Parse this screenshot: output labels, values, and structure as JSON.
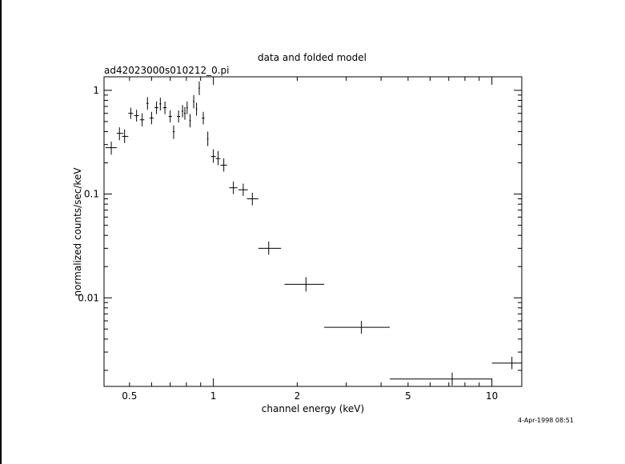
{
  "chart_data": {
    "type": "scatter",
    "title": "data and folded model",
    "subtitle": "ad42023000s010212_0.pi",
    "xlabel": "channel energy (keV)",
    "ylabel": "normalized counts/sec/keV",
    "timestamp": "4-Apr-1998 08:51",
    "x_scale": "log",
    "y_scale": "log",
    "xlim": [
      0.405,
      12.8
    ],
    "ylim": [
      0.0014,
      1.35
    ],
    "x_ticks": [
      {
        "value": 0.5,
        "label": "0.5"
      },
      {
        "value": 1,
        "label": "1"
      },
      {
        "value": 2,
        "label": "2"
      },
      {
        "value": 5,
        "label": "5"
      },
      {
        "value": 10,
        "label": "10"
      }
    ],
    "y_ticks": [
      {
        "value": 0.01,
        "label": "0.01"
      },
      {
        "value": 0.1,
        "label": "0.1"
      },
      {
        "value": 1,
        "label": "1"
      }
    ],
    "grid": false,
    "points": [
      {
        "x": 0.43,
        "xlo": 0.41,
        "xhi": 0.45,
        "y": 0.28,
        "ylo": 0.24,
        "yhi": 0.32
      },
      {
        "x": 0.46,
        "xlo": 0.45,
        "xhi": 0.475,
        "y": 0.385,
        "ylo": 0.33,
        "yhi": 0.44
      },
      {
        "x": 0.48,
        "xlo": 0.47,
        "xhi": 0.495,
        "y": 0.36,
        "ylo": 0.31,
        "yhi": 0.42
      },
      {
        "x": 0.505,
        "xlo": 0.495,
        "xhi": 0.515,
        "y": 0.6,
        "ylo": 0.53,
        "yhi": 0.68
      },
      {
        "x": 0.53,
        "xlo": 0.52,
        "xhi": 0.54,
        "y": 0.57,
        "ylo": 0.5,
        "yhi": 0.65
      },
      {
        "x": 0.555,
        "xlo": 0.545,
        "xhi": 0.565,
        "y": 0.52,
        "ylo": 0.45,
        "yhi": 0.6
      },
      {
        "x": 0.58,
        "xlo": 0.575,
        "xhi": 0.585,
        "y": 0.75,
        "ylo": 0.65,
        "yhi": 0.86
      },
      {
        "x": 0.6,
        "xlo": 0.59,
        "xhi": 0.61,
        "y": 0.54,
        "ylo": 0.47,
        "yhi": 0.62
      },
      {
        "x": 0.625,
        "xlo": 0.615,
        "xhi": 0.635,
        "y": 0.68,
        "ylo": 0.59,
        "yhi": 0.78
      },
      {
        "x": 0.645,
        "xlo": 0.64,
        "xhi": 0.65,
        "y": 0.74,
        "ylo": 0.64,
        "yhi": 0.85
      },
      {
        "x": 0.67,
        "xlo": 0.66,
        "xhi": 0.68,
        "y": 0.68,
        "ylo": 0.59,
        "yhi": 0.78
      },
      {
        "x": 0.7,
        "xlo": 0.69,
        "xhi": 0.71,
        "y": 0.56,
        "ylo": 0.49,
        "yhi": 0.64
      },
      {
        "x": 0.72,
        "xlo": 0.715,
        "xhi": 0.725,
        "y": 0.4,
        "ylo": 0.34,
        "yhi": 0.46
      },
      {
        "x": 0.75,
        "xlo": 0.74,
        "xhi": 0.76,
        "y": 0.56,
        "ylo": 0.49,
        "yhi": 0.64
      },
      {
        "x": 0.775,
        "xlo": 0.77,
        "xhi": 0.78,
        "y": 0.63,
        "ylo": 0.55,
        "yhi": 0.72
      },
      {
        "x": 0.79,
        "xlo": 0.785,
        "xhi": 0.795,
        "y": 0.6,
        "ylo": 0.52,
        "yhi": 0.69
      },
      {
        "x": 0.805,
        "xlo": 0.8,
        "xhi": 0.81,
        "y": 0.68,
        "ylo": 0.59,
        "yhi": 0.78
      },
      {
        "x": 0.825,
        "xlo": 0.82,
        "xhi": 0.83,
        "y": 0.51,
        "ylo": 0.44,
        "yhi": 0.59
      },
      {
        "x": 0.85,
        "xlo": 0.845,
        "xhi": 0.855,
        "y": 0.78,
        "ylo": 0.67,
        "yhi": 0.9
      },
      {
        "x": 0.87,
        "xlo": 0.865,
        "xhi": 0.875,
        "y": 0.66,
        "ylo": 0.57,
        "yhi": 0.76
      },
      {
        "x": 0.89,
        "xlo": 0.885,
        "xhi": 0.895,
        "y": 1.05,
        "ylo": 0.9,
        "yhi": 1.22
      },
      {
        "x": 0.92,
        "xlo": 0.91,
        "xhi": 0.93,
        "y": 0.54,
        "ylo": 0.47,
        "yhi": 0.62
      },
      {
        "x": 0.955,
        "xlo": 0.95,
        "xhi": 0.96,
        "y": 0.34,
        "ylo": 0.29,
        "yhi": 0.4
      },
      {
        "x": 1.0,
        "xlo": 0.98,
        "xhi": 1.02,
        "y": 0.23,
        "ylo": 0.2,
        "yhi": 0.27
      },
      {
        "x": 1.04,
        "xlo": 1.02,
        "xhi": 1.06,
        "y": 0.22,
        "ylo": 0.19,
        "yhi": 0.26
      },
      {
        "x": 1.09,
        "xlo": 1.06,
        "xhi": 1.12,
        "y": 0.19,
        "ylo": 0.165,
        "yhi": 0.22
      },
      {
        "x": 1.18,
        "xlo": 1.14,
        "xhi": 1.22,
        "y": 0.115,
        "ylo": 0.1,
        "yhi": 0.132
      },
      {
        "x": 1.28,
        "xlo": 1.23,
        "xhi": 1.33,
        "y": 0.11,
        "ylo": 0.096,
        "yhi": 0.126
      },
      {
        "x": 1.38,
        "xlo": 1.32,
        "xhi": 1.45,
        "y": 0.09,
        "ylo": 0.078,
        "yhi": 0.103
      },
      {
        "x": 1.58,
        "xlo": 1.45,
        "xhi": 1.75,
        "y": 0.03,
        "ylo": 0.026,
        "yhi": 0.035
      },
      {
        "x": 2.15,
        "xlo": 1.8,
        "xhi": 2.5,
        "y": 0.0135,
        "ylo": 0.0115,
        "yhi": 0.0158
      },
      {
        "x": 3.4,
        "xlo": 2.5,
        "xhi": 4.3,
        "y": 0.0052,
        "ylo": 0.0045,
        "yhi": 0.006
      },
      {
        "x": 7.2,
        "xlo": 4.3,
        "xhi": 10.0,
        "y": 0.00165,
        "ylo": 0.00143,
        "yhi": 0.0019
      },
      {
        "x": 11.8,
        "xlo": 10.0,
        "xhi": 12.8,
        "y": 0.00235,
        "ylo": 0.00205,
        "yhi": 0.0027
      }
    ]
  }
}
